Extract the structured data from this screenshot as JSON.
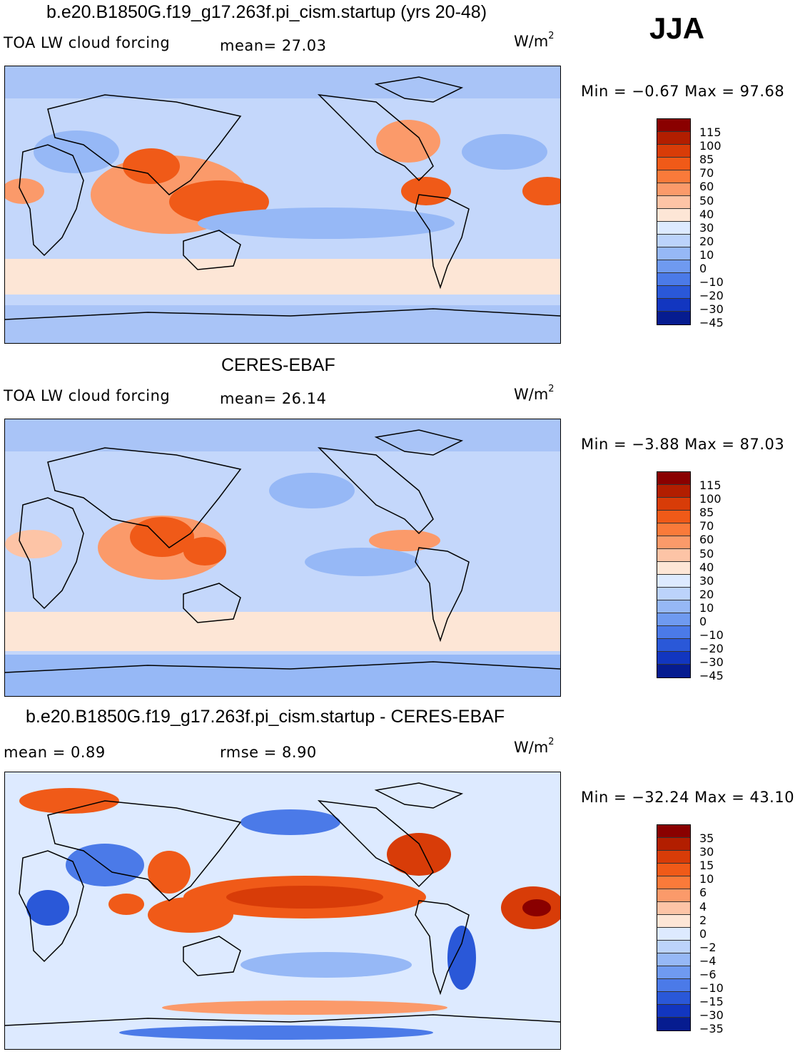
{
  "season": "JJA",
  "units_base": "W/m",
  "units_exp": "2",
  "panels": [
    {
      "title": "b.e20.B1850G.f19_g17.263f.pi_cism.startup (yrs 20-48)",
      "left_label": "TOA LW cloud forcing",
      "stat1": "mean=   27.03",
      "stat2": "",
      "minmax": "Min  =   −0.67  Max  =    97.68",
      "levels": [
        "115",
        "100",
        "85",
        "70",
        "60",
        "50",
        "40",
        "30",
        "20",
        "10",
        "0",
        "−10",
        "−20",
        "−30",
        "−45"
      ],
      "colors": [
        "#8a0000",
        "#b21e00",
        "#d83c08",
        "#f05a18",
        "#fa7a3a",
        "#fb9a6a",
        "#fdc4a6",
        "#fde6d6",
        "#ddeaff",
        "#bcd3fb",
        "#96b8f6",
        "#6f9af0",
        "#4b7ae8",
        "#2a58d8",
        "#1236c0",
        "#061c90"
      ]
    },
    {
      "title": "CERES-EBAF",
      "left_label": "TOA LW cloud forcing",
      "stat1": "mean=   26.14",
      "stat2": "",
      "minmax": "Min  =   −3.88  Max  =    87.03",
      "levels": [
        "115",
        "100",
        "85",
        "70",
        "60",
        "50",
        "40",
        "30",
        "20",
        "10",
        "0",
        "−10",
        "−20",
        "−30",
        "−45"
      ],
      "colors": [
        "#8a0000",
        "#b21e00",
        "#d83c08",
        "#f05a18",
        "#fa7a3a",
        "#fb9a6a",
        "#fdc4a6",
        "#fde6d6",
        "#ddeaff",
        "#bcd3fb",
        "#96b8f6",
        "#6f9af0",
        "#4b7ae8",
        "#2a58d8",
        "#1236c0",
        "#061c90"
      ]
    },
    {
      "title": "b.e20.B1850G.f19_g17.263f.pi_cism.startup - CERES-EBAF",
      "left_label": "mean  =     0.89",
      "stat1": "rmse  =     8.90",
      "stat2": "",
      "minmax": "Min  = −32.24  Max  =    43.10",
      "levels": [
        "35",
        "30",
        "15",
        "10",
        "6",
        "4",
        "2",
        "0",
        "−2",
        "−4",
        "−6",
        "−10",
        "−15",
        "−30",
        "−35"
      ],
      "colors": [
        "#8a0000",
        "#b21e00",
        "#d83c08",
        "#f05a18",
        "#fa7a3a",
        "#fb9a6a",
        "#fdc4a6",
        "#fde6d6",
        "#ddeaff",
        "#bcd3fb",
        "#96b8f6",
        "#6f9af0",
        "#4b7ae8",
        "#2a58d8",
        "#1236c0",
        "#061c90"
      ]
    }
  ]
}
